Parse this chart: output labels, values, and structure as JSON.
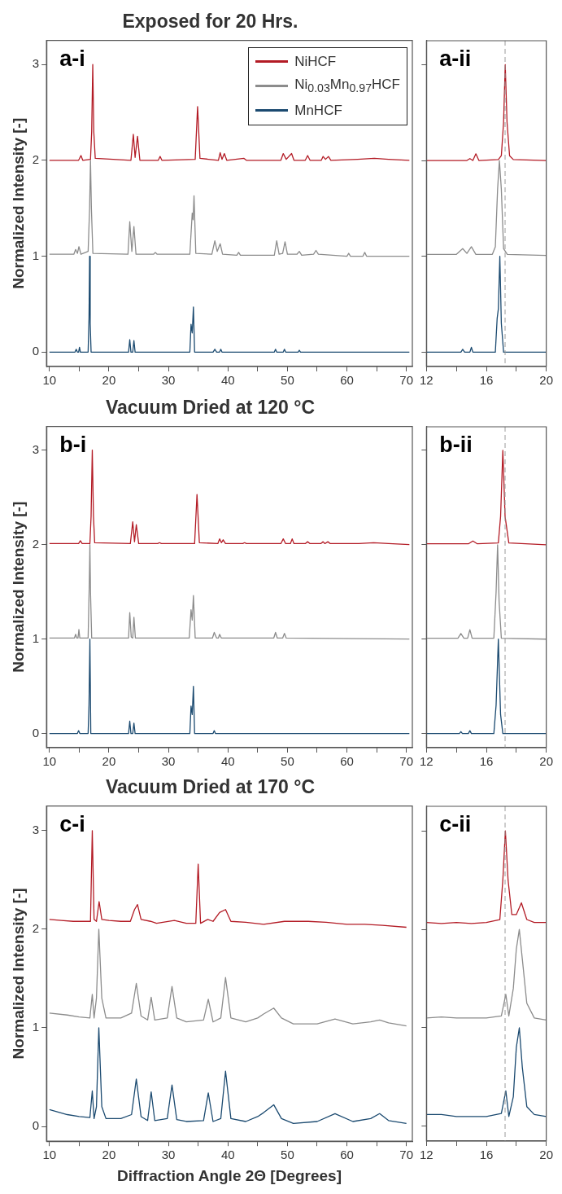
{
  "chart_data": [
    {
      "type": "line",
      "title": "Exposed for 20 Hrs.",
      "ylabel": "Normalized Intensity [-]",
      "annotations": [
        "a-i"
      ],
      "xlim": [
        9.5,
        71
      ],
      "xticks": [
        10,
        {
          "value": 15,
          "label": null
        },
        20,
        {
          "value": 25,
          "label": null
        },
        30,
        {
          "value": 35,
          "label": null
        },
        40,
        {
          "value": 45,
          "label": null
        },
        50,
        {
          "value": 55,
          "label": null
        },
        60,
        {
          "value": 65,
          "label": null
        },
        70
      ],
      "ylim": [
        -0.15,
        3.25
      ],
      "yticks": [
        0,
        1,
        2,
        3
      ],
      "grid": false,
      "legend": "top right",
      "series": [
        {
          "name": "NiHCF",
          "color": "#b31b25",
          "x": [
            10,
            14.9,
            15.3,
            15.6,
            16.9,
            17.1,
            17.28,
            17.45,
            17.7,
            23.7,
            24.1,
            24.4,
            24.8,
            25.2,
            28.3,
            28.6,
            28.9,
            34.5,
            34.9,
            35.3,
            38.4,
            38.7,
            39.0,
            39.4,
            39.8,
            42.7,
            43.1,
            48.9,
            49.3,
            49.8,
            50.7,
            51.1,
            53.0,
            53.4,
            53.8,
            55.7,
            56.0,
            56.4,
            56.9,
            57.3,
            61.8,
            64.6,
            67,
            70.5
          ],
          "values": [
            2.0,
            2.0,
            2.05,
            2.0,
            2.01,
            2.3,
            3.0,
            2.3,
            2.02,
            2.0,
            2.27,
            2.03,
            2.25,
            2.0,
            2.0,
            2.04,
            2.0,
            2.01,
            2.56,
            2.02,
            2.0,
            2.08,
            2.01,
            2.07,
            2.0,
            2.02,
            2.0,
            2.0,
            2.07,
            2.01,
            2.07,
            2.0,
            2.0,
            2.05,
            2.0,
            2.0,
            2.04,
            2.01,
            2.04,
            2.0,
            2.01,
            2.02,
            2.01,
            2.0
          ]
        },
        {
          "name": "Ni$_{0.03}$Mn$_{0.97}$HCF",
          "color": "#8c8c8c",
          "x": [
            10,
            14.1,
            14.4,
            14.7,
            14.95,
            15.3,
            16.5,
            16.75,
            16.9,
            17.05,
            17.3,
            23.2,
            23.5,
            23.85,
            24.2,
            24.55,
            27.5,
            27.8,
            28.1,
            33.6,
            34.0,
            34.15,
            34.3,
            34.6,
            37.3,
            37.8,
            38.2,
            38.7,
            39.1,
            41.5,
            41.8,
            42.1,
            47.8,
            48.2,
            48.6,
            49.2,
            49.6,
            50.0,
            51.6,
            52.0,
            52.4,
            54.4,
            54.8,
            55.2,
            60.0,
            60.3,
            60.6,
            62.7,
            63.0,
            63.3,
            70.5
          ],
          "values": [
            1.02,
            1.02,
            1.07,
            1.03,
            1.1,
            1.02,
            1.05,
            1.5,
            2.0,
            1.5,
            1.03,
            1.02,
            1.36,
            1.05,
            1.31,
            1.02,
            1.02,
            1.04,
            1.02,
            1.02,
            1.45,
            1.38,
            1.63,
            1.03,
            1.02,
            1.16,
            1.05,
            1.13,
            1.02,
            1.01,
            1.04,
            1.01,
            1.01,
            1.16,
            1.02,
            1.03,
            1.15,
            1.02,
            1.02,
            1.05,
            1.01,
            1.02,
            1.06,
            1.02,
            1.0,
            1.03,
            1.0,
            1.0,
            1.04,
            1.0,
            1.0
          ]
        },
        {
          "name": "MnHCF",
          "color": "#1b4a70",
          "x": [
            10,
            14.3,
            14.5,
            14.7,
            14.9,
            15.05,
            15.2,
            16.5,
            16.65,
            16.75,
            16.85,
            17.0,
            23.3,
            23.5,
            23.7,
            24.0,
            24.2,
            24.4,
            33.6,
            33.8,
            34.0,
            34.2,
            34.4,
            37.5,
            37.8,
            38.1,
            38.6,
            38.8,
            39.0,
            47.8,
            48.0,
            48.2,
            49.3,
            49.5,
            49.7,
            51.8,
            52.0,
            52.2,
            70.5
          ],
          "values": [
            0,
            0,
            0.03,
            0,
            0,
            0.05,
            0,
            0,
            0.35,
            1.0,
            0.3,
            0,
            0,
            0.13,
            0,
            0,
            0.12,
            0,
            0,
            0.29,
            0.2,
            0.47,
            0,
            0,
            0.03,
            0,
            0,
            0.03,
            0,
            0,
            0.03,
            0,
            0,
            0.03,
            0,
            0,
            0.02,
            0,
            0
          ]
        }
      ]
    },
    {
      "type": "line",
      "annotations": [
        "a-ii"
      ],
      "xlim": [
        12,
        20
      ],
      "xticks": [
        12,
        {
          "value": 14,
          "label": null
        },
        16,
        {
          "value": 18,
          "label": null
        },
        20
      ],
      "ylim": [
        -0.15,
        3.25
      ],
      "yticks": [
        0,
        1,
        2,
        3
      ],
      "grid": false,
      "tick_labels": "x",
      "ref_lines": [
        {
          "axis": "x",
          "value": 17.25,
          "color": "#9a9a9a",
          "line_style": "dashed"
        }
      ],
      "series": [
        {
          "color": "#b31b25",
          "x": [
            12,
            14.7,
            14.9,
            15.1,
            15.3,
            15.5,
            16.8,
            17.0,
            17.15,
            17.26,
            17.38,
            17.55,
            17.8,
            20
          ],
          "values": [
            2.0,
            2.0,
            2.02,
            2.0,
            2.07,
            2.0,
            2.01,
            2.05,
            2.4,
            3.0,
            2.4,
            2.05,
            2.01,
            2.0
          ]
        },
        {
          "color": "#8c8c8c",
          "x": [
            12,
            14.0,
            14.42,
            14.7,
            15.0,
            15.3,
            16.4,
            16.6,
            16.75,
            16.87,
            17.0,
            17.15,
            17.4,
            20
          ],
          "values": [
            1.02,
            1.02,
            1.08,
            1.03,
            1.1,
            1.02,
            1.02,
            1.1,
            1.7,
            2.0,
            1.7,
            1.08,
            1.02,
            1.01
          ]
        },
        {
          "color": "#1b4a70",
          "x": [
            12,
            14.3,
            14.42,
            14.55,
            14.9,
            15.0,
            15.1,
            16.6,
            16.72,
            16.8,
            16.9,
            17.0,
            17.15,
            20
          ],
          "values": [
            0,
            0,
            0.03,
            0,
            0,
            0.05,
            0,
            0,
            0.35,
            0.45,
            1.0,
            0.3,
            0,
            0
          ]
        }
      ]
    },
    {
      "type": "line",
      "title": "Vacuum Dried at 120 °C",
      "ylabel": "Normalized Intensity [-]",
      "annotations": [
        "b-i"
      ],
      "xlim": [
        9.5,
        71
      ],
      "xticks": [
        10,
        {
          "value": 15,
          "label": null
        },
        20,
        {
          "value": 25,
          "label": null
        },
        30,
        {
          "value": 35,
          "label": null
        },
        40,
        {
          "value": 45,
          "label": null
        },
        50,
        {
          "value": 55,
          "label": null
        },
        60,
        {
          "value": 65,
          "label": null
        },
        70
      ],
      "ylim": [
        -0.15,
        3.25
      ],
      "yticks": [
        0,
        1,
        2,
        3
      ],
      "grid": false,
      "series": [
        {
          "color": "#b31b25",
          "x": [
            10,
            14.9,
            15.2,
            15.5,
            16.8,
            17.0,
            17.2,
            17.4,
            17.6,
            23.6,
            24.0,
            24.3,
            24.6,
            25.0,
            28.2,
            28.5,
            28.8,
            34.4,
            34.8,
            35.2,
            38.3,
            38.6,
            38.9,
            39.2,
            39.6,
            42.5,
            42.8,
            43.1,
            48.9,
            49.3,
            49.7,
            50.5,
            50.8,
            51.1,
            53.0,
            53.4,
            53.8,
            55.6,
            56.0,
            56.3,
            56.8,
            57.2,
            62,
            64.5,
            67,
            70.5
          ],
          "values": [
            2.01,
            2.01,
            2.04,
            2.01,
            2.01,
            2.3,
            3.0,
            2.3,
            2.02,
            2.01,
            2.24,
            2.03,
            2.21,
            2.01,
            2.01,
            2.02,
            2.01,
            2.01,
            2.53,
            2.02,
            2.01,
            2.06,
            2.02,
            2.05,
            2.01,
            2.01,
            2.02,
            2.01,
            2.01,
            2.06,
            2.01,
            2.01,
            2.06,
            2.01,
            2.01,
            2.03,
            2.01,
            2.01,
            2.03,
            2.01,
            2.03,
            2.01,
            2.01,
            2.02,
            2.01,
            2.0
          ]
        },
        {
          "color": "#8c8c8c",
          "x": [
            10,
            14.2,
            14.4,
            14.6,
            14.8,
            14.95,
            15.1,
            16.5,
            16.7,
            16.8,
            16.9,
            17.1,
            23.3,
            23.5,
            23.75,
            24.0,
            24.2,
            24.45,
            33.5,
            33.8,
            34.0,
            34.2,
            34.5,
            37.4,
            37.7,
            38.1,
            38.4,
            38.6,
            38.9,
            47.7,
            48.0,
            48.3,
            49.2,
            49.5,
            49.8,
            70.5
          ],
          "values": [
            1.01,
            1.01,
            1.05,
            1.01,
            1.01,
            1.1,
            1.01,
            1.01,
            1.6,
            2.0,
            1.5,
            1.01,
            1.01,
            1.28,
            1.02,
            1.01,
            1.23,
            1.01,
            1.01,
            1.31,
            1.2,
            1.46,
            1.01,
            1.01,
            1.07,
            1.01,
            1.01,
            1.05,
            1.01,
            1.01,
            1.07,
            1.01,
            1.01,
            1.06,
            1.01,
            1.0
          ]
        },
        {
          "color": "#1b4a70",
          "x": [
            10,
            14.7,
            14.9,
            15.1,
            16.5,
            16.65,
            16.8,
            16.95,
            23.3,
            23.5,
            23.7,
            24.0,
            24.2,
            24.4,
            33.6,
            33.8,
            34.0,
            34.2,
            34.4,
            37.5,
            37.7,
            37.9,
            70.5
          ],
          "values": [
            0,
            0,
            0.03,
            0,
            0,
            0.3,
            1.0,
            0,
            0,
            0.13,
            0,
            0,
            0.11,
            0,
            0,
            0.29,
            0.2,
            0.5,
            0,
            0,
            0.03,
            0,
            0
          ]
        }
      ]
    },
    {
      "type": "line",
      "annotations": [
        "b-ii"
      ],
      "xlim": [
        12,
        20
      ],
      "xticks": [
        12,
        {
          "value": 14,
          "label": null
        },
        16,
        {
          "value": 18,
          "label": null
        },
        20
      ],
      "ylim": [
        -0.15,
        3.25
      ],
      "yticks": [
        0,
        1,
        2,
        3
      ],
      "grid": false,
      "tick_labels": "x",
      "ref_lines": [
        {
          "axis": "x",
          "value": 17.25,
          "color": "#9a9a9a",
          "line_style": "dashed"
        }
      ],
      "series": [
        {
          "color": "#b31b25",
          "x": [
            12,
            14.8,
            15.1,
            15.4,
            16.8,
            16.95,
            17.1,
            17.25,
            17.5,
            20
          ],
          "values": [
            2.01,
            2.01,
            2.04,
            2.01,
            2.02,
            2.3,
            3.0,
            2.3,
            2.02,
            2.0
          ]
        },
        {
          "color": "#8c8c8c",
          "x": [
            12,
            14.1,
            14.3,
            14.5,
            14.75,
            14.9,
            15.05,
            16.5,
            16.65,
            16.75,
            16.85,
            17.0,
            20
          ],
          "values": [
            1.01,
            1.01,
            1.06,
            1.01,
            1.01,
            1.1,
            1.01,
            1.01,
            1.5,
            2.0,
            1.4,
            1.01,
            1.0
          ]
        },
        {
          "color": "#1b4a70",
          "x": [
            12,
            14.2,
            14.3,
            14.4,
            14.8,
            14.9,
            15.0,
            16.5,
            16.65,
            16.8,
            16.95,
            17.1,
            20
          ],
          "values": [
            0,
            0,
            0.02,
            0,
            0,
            0.03,
            0,
            0,
            0.3,
            1.0,
            0.2,
            0,
            0
          ]
        }
      ]
    },
    {
      "type": "line",
      "title": "Vacuum Dried at 170 °C",
      "xlabel": "Diffraction Angle 2Θ [Degrees]",
      "ylabel": "Normalized Intensity [-]",
      "annotations": [
        "c-i"
      ],
      "xlim": [
        9.5,
        71
      ],
      "xticks": [
        10,
        {
          "value": 15,
          "label": null
        },
        20,
        {
          "value": 25,
          "label": null
        },
        30,
        {
          "value": 35,
          "label": null
        },
        40,
        {
          "value": 45,
          "label": null
        },
        50,
        {
          "value": 55,
          "label": null
        },
        60,
        {
          "value": 65,
          "label": null
        },
        70
      ],
      "ylim": [
        -0.15,
        3.25
      ],
      "yticks": [
        0,
        1,
        2,
        3
      ],
      "grid": false,
      "series": [
        {
          "color": "#b31b25",
          "x": [
            10,
            12,
            14,
            16,
            16.9,
            17.2,
            17.5,
            17.9,
            18.35,
            18.8,
            20,
            22,
            23.6,
            24.3,
            24.8,
            25.4,
            27.0,
            28,
            31.0,
            33,
            34.6,
            35.0,
            35.4,
            36.6,
            37.5,
            38.6,
            39.6,
            40.5,
            43,
            46,
            49.5,
            51,
            53.5,
            56.5,
            60,
            63,
            66,
            70
          ],
          "values": [
            2.1,
            2.09,
            2.08,
            2.08,
            2.08,
            3.0,
            2.1,
            2.08,
            2.28,
            2.1,
            2.09,
            2.08,
            2.08,
            2.2,
            2.25,
            2.1,
            2.08,
            2.06,
            2.09,
            2.06,
            2.06,
            2.66,
            2.06,
            2.1,
            2.08,
            2.17,
            2.2,
            2.08,
            2.07,
            2.05,
            2.08,
            2.08,
            2.08,
            2.07,
            2.05,
            2.05,
            2.04,
            2.02
          ]
        },
        {
          "color": "#8c8c8c",
          "x": [
            10,
            13,
            15,
            16.8,
            17.2,
            17.5,
            17.9,
            18.3,
            18.8,
            19.5,
            22,
            23.8,
            24.6,
            25.4,
            26.5,
            27.1,
            27.7,
            29.8,
            30.6,
            31.4,
            33,
            35.9,
            36.7,
            37.5,
            38.8,
            39.6,
            40.5,
            43,
            45,
            46,
            47.7,
            49,
            51,
            55,
            58,
            61,
            64,
            65.5,
            67,
            70
          ],
          "values": [
            1.15,
            1.13,
            1.11,
            1.1,
            1.34,
            1.1,
            1.3,
            2.0,
            1.3,
            1.1,
            1.1,
            1.15,
            1.45,
            1.12,
            1.08,
            1.31,
            1.08,
            1.1,
            1.42,
            1.1,
            1.06,
            1.08,
            1.29,
            1.06,
            1.1,
            1.51,
            1.1,
            1.06,
            1.1,
            1.14,
            1.2,
            1.1,
            1.04,
            1.04,
            1.09,
            1.04,
            1.06,
            1.08,
            1.05,
            1.02
          ]
        },
        {
          "color": "#1b4a70",
          "x": [
            10,
            13,
            15,
            16.8,
            17.2,
            17.5,
            17.9,
            18.3,
            18.8,
            19.5,
            22,
            23.8,
            24.6,
            25.4,
            26.5,
            27.1,
            27.7,
            29.8,
            30.6,
            31.4,
            33,
            35.9,
            36.7,
            37.5,
            38.8,
            39.6,
            40.5,
            43,
            45,
            46,
            47.7,
            49,
            51,
            55,
            58,
            61,
            64,
            65.5,
            67,
            70
          ],
          "values": [
            0.17,
            0.12,
            0.1,
            0.09,
            0.36,
            0.08,
            0.2,
            1.0,
            0.2,
            0.08,
            0.08,
            0.12,
            0.48,
            0.1,
            0.06,
            0.35,
            0.06,
            0.08,
            0.42,
            0.07,
            0.05,
            0.06,
            0.34,
            0.05,
            0.08,
            0.56,
            0.08,
            0.05,
            0.1,
            0.14,
            0.22,
            0.08,
            0.03,
            0.05,
            0.13,
            0.05,
            0.08,
            0.13,
            0.06,
            0.03
          ]
        }
      ]
    },
    {
      "type": "line",
      "annotations": [
        "c-ii"
      ],
      "xlim": [
        12,
        20
      ],
      "xticks": [
        12,
        {
          "value": 14,
          "label": null
        },
        16,
        {
          "value": 18,
          "label": null
        },
        20
      ],
      "ylim": [
        -0.15,
        3.25
      ],
      "yticks": [
        0,
        1,
        2,
        3
      ],
      "grid": false,
      "tick_labels": "x",
      "ref_lines": [
        {
          "axis": "x",
          "value": 17.25,
          "color": "#9a9a9a",
          "line_style": "dashed"
        }
      ],
      "series": [
        {
          "color": "#b31b25",
          "x": [
            12,
            13,
            14,
            15,
            16,
            16.9,
            17.1,
            17.27,
            17.45,
            17.7,
            18.0,
            18.34,
            18.7,
            19.2,
            20
          ],
          "values": [
            2.07,
            2.06,
            2.07,
            2.06,
            2.07,
            2.1,
            2.5,
            3.0,
            2.5,
            2.15,
            2.15,
            2.27,
            2.1,
            2.07,
            2.07
          ]
        },
        {
          "color": "#8c8c8c",
          "x": [
            12,
            13,
            14,
            15,
            16,
            17.0,
            17.3,
            17.5,
            17.8,
            18.0,
            18.2,
            18.4,
            18.7,
            19.2,
            20
          ],
          "values": [
            1.1,
            1.11,
            1.1,
            1.1,
            1.1,
            1.12,
            1.34,
            1.12,
            1.4,
            1.8,
            2.0,
            1.7,
            1.25,
            1.1,
            1.08
          ]
        },
        {
          "color": "#1b4a70",
          "x": [
            12,
            13,
            14,
            15,
            16,
            17.0,
            17.3,
            17.5,
            17.8,
            18.0,
            18.2,
            18.4,
            18.7,
            19.2,
            20
          ],
          "values": [
            0.12,
            0.12,
            0.1,
            0.1,
            0.1,
            0.13,
            0.36,
            0.1,
            0.3,
            0.8,
            1.0,
            0.6,
            0.2,
            0.12,
            0.1
          ]
        }
      ]
    }
  ]
}
